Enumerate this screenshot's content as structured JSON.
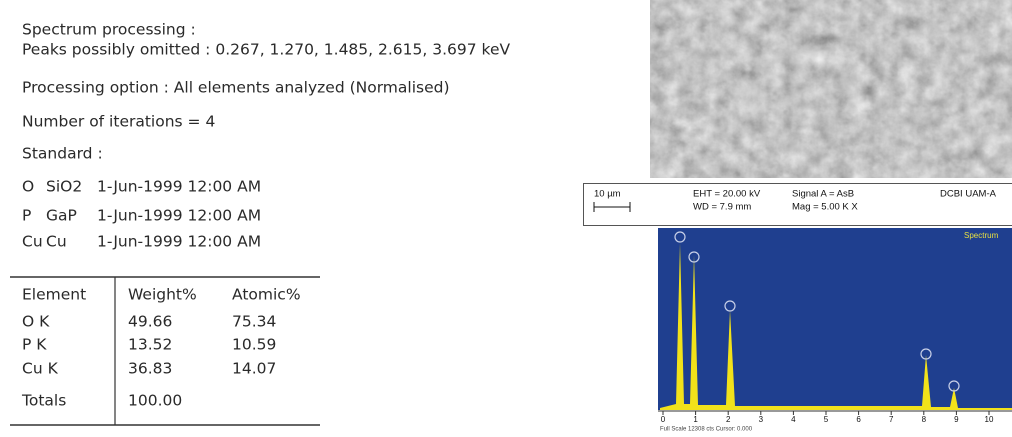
{
  "report": {
    "lines": [
      "Spectrum processing :",
      "Peaks possibly omitted : 0.267, 1.270, 1.485, 2.615, 3.697 keV",
      "Processing option : All elements analyzed (Normalised)",
      "Number of iterations = 4",
      "Standard :"
    ],
    "standards": [
      [
        "O",
        "SiO2",
        "1-Jun-1999 12:00 AM"
      ],
      [
        "P",
        "GaP",
        "1-Jun-1999 12:00 AM"
      ],
      [
        "Cu",
        "Cu",
        "1-Jun-1999 12:00 AM"
      ]
    ]
  },
  "table": {
    "header": [
      "Element",
      "Weight%",
      "Atomic%"
    ],
    "rows": [
      [
        "O K",
        "49.66",
        "75.34"
      ],
      [
        "P K",
        "13.52",
        "10.59"
      ],
      [
        "Cu K",
        "36.83",
        "14.07"
      ],
      [
        "Totals",
        "100.00"
      ]
    ]
  },
  "sem": {
    "scale": "10 µm",
    "eht": "EHT = 20.00 kV",
    "wd": "WD = 7.9 mm",
    "signal": "Signal A = AsB",
    "mag": "Mag =  5.00 K X",
    "lab": "DCBI UAM-A"
  },
  "spectrum": {
    "label": "Spectrum",
    "xticks": [
      "0",
      "1",
      "2",
      "3",
      "4",
      "5",
      "6",
      "7",
      "8",
      "9",
      "10"
    ],
    "footer": "Full Scale 12308 cts Cursor: 0.000"
  }
}
